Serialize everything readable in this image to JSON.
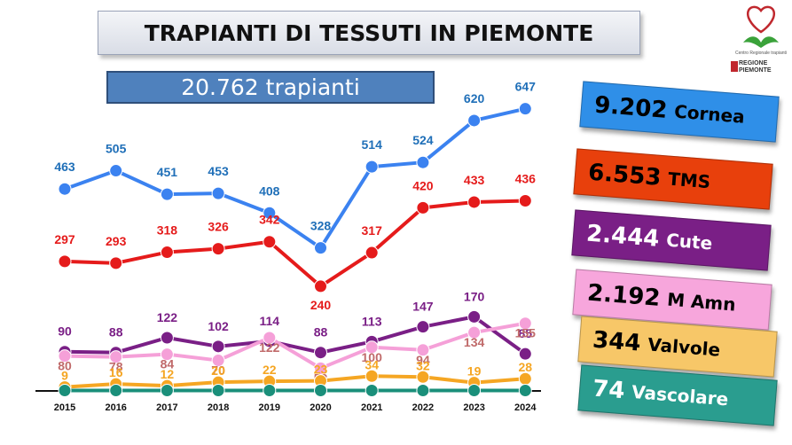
{
  "title": "TRAPIANTI DI TESSUTI IN PIEMONTE",
  "total": "20.762 trapianti",
  "logo_caption": "Centro Regionale trapianti",
  "region_lines": [
    "REGIONE",
    "PIEMONTE"
  ],
  "cards": [
    {
      "number": "9.202",
      "label": "Cornea",
      "color": "#2f8fe8",
      "text_color": "#000000"
    },
    {
      "number": "6.553",
      "label": "TMS",
      "color": "#e8400c",
      "text_color": "#000000"
    },
    {
      "number": "2.444",
      "label": "Cute",
      "color": "#7a1f86",
      "text_color": "#ffffff"
    },
    {
      "number": "2.192",
      "label": "M Amn",
      "color": "#f7a6dc",
      "text_color": "#000000"
    },
    {
      "number": "344",
      "label": "Valvole",
      "color": "#f7c768",
      "text_color": "#000000"
    },
    {
      "number": "74",
      "label": "Vascolare",
      "color": "#2a9d8f",
      "text_color": "#ffffff"
    }
  ],
  "chart_data": {
    "type": "line",
    "x": [
      "2015",
      "2016",
      "2017",
      "2018",
      "2019",
      "2020",
      "2021",
      "2022",
      "2023",
      "2024"
    ],
    "series": [
      {
        "name": "Cornea",
        "color": "#3b82f0",
        "label_color": "#1f6fb8",
        "values": [
          463,
          505,
          451,
          453,
          408,
          328,
          514,
          524,
          620,
          647
        ]
      },
      {
        "name": "TMS",
        "color": "#e51b1b",
        "label_color": "#e51b1b",
        "values": [
          297,
          293,
          318,
          326,
          342,
          240,
          317,
          420,
          433,
          436
        ]
      },
      {
        "name": "Cute",
        "color": "#7a1f86",
        "label_color": "#7a1f86",
        "values": [
          90,
          88,
          122,
          102,
          114,
          88,
          113,
          147,
          170,
          85
        ]
      },
      {
        "name": "M Amn",
        "color": "#f5a0d8",
        "label_color": "#c06a6a",
        "values": [
          80,
          78,
          84,
          70,
          122,
          52,
          100,
          94,
          134,
          155
        ]
      },
      {
        "name": "Valvole",
        "color": "#f5a623",
        "label_color": "#f5a623",
        "values": [
          9,
          16,
          12,
          20,
          22,
          23,
          34,
          32,
          19,
          28
        ]
      },
      {
        "name": "Vascolare",
        "color": "#1a8f7a",
        "label_color": "#1a8f7a",
        "values": [
          1,
          1,
          1,
          1,
          1,
          1,
          1,
          1,
          1,
          1
        ]
      }
    ],
    "ylim": [
      0,
      700
    ],
    "grid": false
  }
}
